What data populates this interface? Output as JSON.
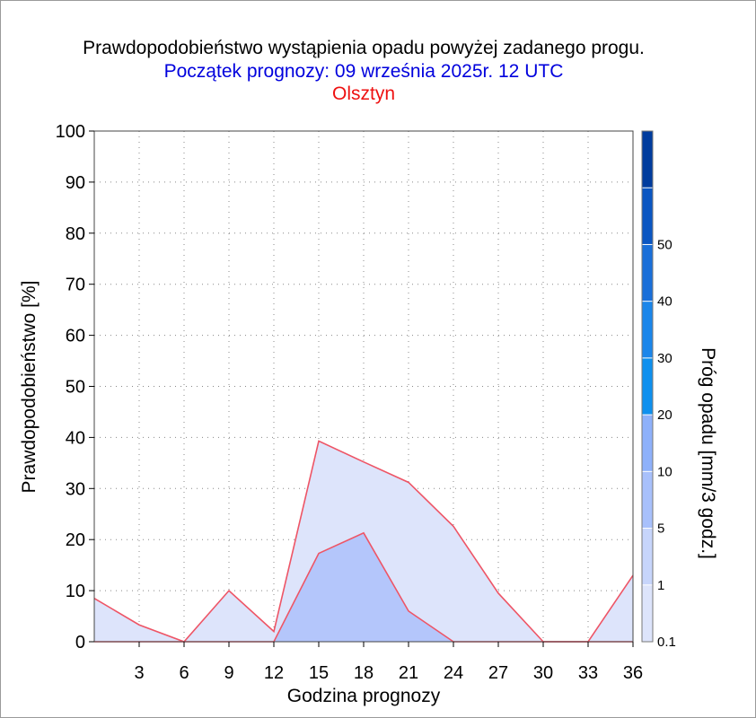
{
  "chart_data": {
    "type": "area",
    "title": "Prawdopodobieństwo wystąpienia opadu powyżej zadanego progu.",
    "subtitle": "Początek prognozy: 09 września 2025r. 12 UTC",
    "location": "Olsztyn",
    "xlabel": "Godzina prognozy",
    "ylabel": "Prawdopodobieństwo [%]",
    "colorbar_label": "Próg opadu [mm/3 godz.]",
    "xlim": [
      0,
      36
    ],
    "ylim": [
      0,
      100
    ],
    "x_ticks": [
      3,
      6,
      9,
      12,
      15,
      18,
      21,
      24,
      27,
      30,
      33,
      36
    ],
    "x_tick_labels": [
      "3",
      "6",
      "9",
      "12",
      "15",
      "18",
      "21",
      "24",
      "27",
      "30",
      "33",
      "36"
    ],
    "y_ticks": [
      0,
      10,
      20,
      30,
      40,
      50,
      60,
      70,
      80,
      90,
      100
    ],
    "y_tick_labels": [
      "0",
      "10",
      "20",
      "30",
      "40",
      "50",
      "60",
      "70",
      "80",
      "90",
      "100"
    ],
    "grid": true,
    "x": [
      0,
      3,
      6,
      9,
      12,
      15,
      18,
      21,
      24,
      27,
      30,
      33,
      36
    ],
    "series": [
      {
        "threshold": "0.1",
        "color": "#dde4fb",
        "values": [
          8.5,
          3.3,
          0,
          10,
          2,
          39.3,
          35.2,
          31.2,
          22.6,
          9.5,
          0,
          0,
          13
        ]
      },
      {
        "threshold": "1",
        "color": "#b4c6fb",
        "values": [
          0,
          0,
          0,
          0,
          0,
          17.3,
          21.3,
          6,
          0,
          0,
          0,
          0,
          0
        ]
      }
    ],
    "line_color": "#ee5566",
    "colorbar": {
      "bins": [
        {
          "label": "0.1",
          "color": "#dde4fb"
        },
        {
          "label": "1",
          "color": "#c7d5fb"
        },
        {
          "label": "5",
          "color": "#a8c0fb"
        },
        {
          "label": "10",
          "color": "#8eb1fa"
        },
        {
          "label": "20",
          "color": "#0f90ee"
        },
        {
          "label": "30",
          "color": "#1b86ea"
        },
        {
          "label": "40",
          "color": "#1a6fd9"
        },
        {
          "label": "50",
          "color": "#0b56c2"
        },
        {
          "label": "",
          "color": "#003c9e"
        }
      ]
    }
  }
}
